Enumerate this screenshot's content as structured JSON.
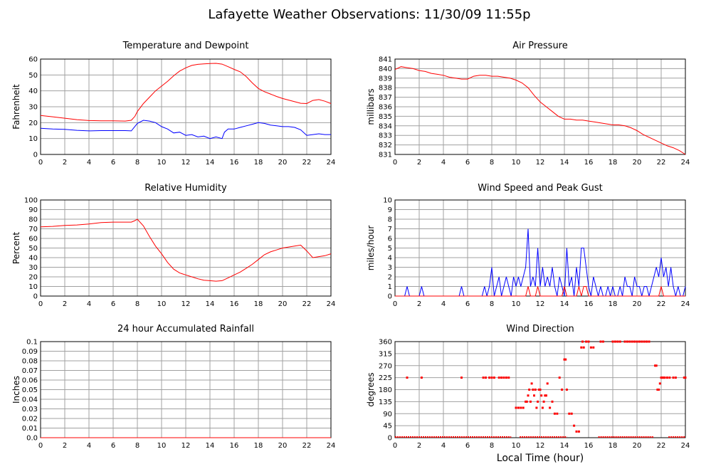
{
  "page_title": "Lafayette Weather Observations: 11/30/09 11:55p",
  "xlabel_global": "Local Time (hour)",
  "colors": {
    "temperature": "#ff0000",
    "dewpoint": "#0000ff",
    "grid": "#a0a0a0",
    "axes": "#000000"
  },
  "chart_data": [
    {
      "id": "temperature-dewpoint",
      "type": "line",
      "title": "Temperature and Dewpoint",
      "xlabel": "",
      "ylabel": "Fahrenheit",
      "xlim": [
        0,
        24
      ],
      "ylim": [
        0,
        60
      ],
      "xticks": [
        0,
        2,
        4,
        6,
        8,
        10,
        12,
        14,
        16,
        18,
        20,
        22,
        24
      ],
      "yticks": [
        0,
        10,
        20,
        30,
        40,
        50,
        60
      ],
      "grid": true,
      "series": [
        {
          "color": "#ff0000",
          "x": [
            0,
            1,
            2,
            3,
            4,
            5,
            6,
            7,
            7.5,
            7.8,
            8,
            8.5,
            9,
            9.5,
            10,
            10.5,
            11,
            11.5,
            12,
            12.5,
            13,
            13.5,
            14,
            14.5,
            15,
            15.5,
            16,
            16.5,
            17,
            17.5,
            18,
            18.5,
            19,
            19.5,
            20,
            20.5,
            21,
            21.5,
            22,
            22.5,
            23,
            23.5,
            24
          ],
          "y": [
            24.5,
            23.7,
            22.8,
            21.9,
            21.3,
            21.2,
            21.2,
            21.0,
            21.5,
            24,
            27,
            32,
            36,
            40,
            43,
            46,
            49.5,
            52.5,
            54.5,
            56,
            56.7,
            57,
            57.2,
            57.3,
            56.8,
            55.2,
            53.5,
            52,
            49,
            45,
            41.5,
            39.5,
            38,
            36.5,
            35.2,
            34.2,
            33.2,
            32.2,
            32,
            34,
            34.5,
            33.5,
            32
          ]
        },
        {
          "color": "#0000ff",
          "x": [
            0,
            1,
            2,
            3,
            4,
            5,
            6,
            7,
            7.5,
            8,
            8.5,
            9,
            9.5,
            10,
            10.5,
            11,
            11.5,
            12,
            12.5,
            13,
            13.5,
            14,
            14.5,
            15,
            15.2,
            15.5,
            16,
            16.5,
            17,
            17.5,
            18,
            18.5,
            19,
            19.5,
            20,
            20.5,
            21,
            21.5,
            22,
            22.5,
            23,
            23.5,
            24
          ],
          "y": [
            16.5,
            16.0,
            15.8,
            15.2,
            14.8,
            15.0,
            15.0,
            15.0,
            14.8,
            19.5,
            21.5,
            21.0,
            20.0,
            17.5,
            16.0,
            13.5,
            14.0,
            12.0,
            12.5,
            11.0,
            11.5,
            10.0,
            11.0,
            10.0,
            14.0,
            16.0,
            16.0,
            17.0,
            18.0,
            19.0,
            20.0,
            19.5,
            18.5,
            18.0,
            17.5,
            17.5,
            17.0,
            15.5,
            12.0,
            12.5,
            13.0,
            12.5,
            12.5
          ]
        }
      ]
    },
    {
      "id": "air-pressure",
      "type": "line",
      "title": "Air Pressure",
      "xlabel": "",
      "ylabel": "millibars",
      "xlim": [
        0,
        24
      ],
      "ylim": [
        831,
        841
      ],
      "xticks": [
        0,
        2,
        4,
        6,
        8,
        10,
        12,
        14,
        16,
        18,
        20,
        22,
        24
      ],
      "yticks": [
        831,
        832,
        833,
        834,
        835,
        836,
        837,
        838,
        839,
        840,
        841
      ],
      "grid": true,
      "series": [
        {
          "color": "#ff0000",
          "x": [
            0,
            0.5,
            1,
            1.5,
            2,
            2.5,
            3,
            3.5,
            4,
            4.5,
            5,
            5.5,
            6,
            6.5,
            7,
            7.5,
            8,
            8.5,
            9,
            9.5,
            10,
            10.5,
            11,
            11.5,
            12,
            12.5,
            13,
            13.5,
            14,
            14.5,
            15,
            15.5,
            16,
            16.5,
            17,
            17.5,
            18,
            18.5,
            19,
            19.5,
            20,
            20.5,
            21,
            21.5,
            22,
            22.5,
            23,
            23.5,
            24
          ],
          "y": [
            839.9,
            840.2,
            840.1,
            840.0,
            839.8,
            839.7,
            839.5,
            839.4,
            839.3,
            839.1,
            839.0,
            838.9,
            838.9,
            839.2,
            839.3,
            839.3,
            839.2,
            839.2,
            839.1,
            839.0,
            838.8,
            838.5,
            838.0,
            837.2,
            836.5,
            836.0,
            835.5,
            835.0,
            834.7,
            834.7,
            834.6,
            834.6,
            834.5,
            834.4,
            834.3,
            834.2,
            834.1,
            834.1,
            834.0,
            833.8,
            833.5,
            833.1,
            832.8,
            832.5,
            832.2,
            831.9,
            831.7,
            831.4,
            831.0
          ]
        }
      ]
    },
    {
      "id": "relative-humidity",
      "type": "line",
      "title": "Relative Humidity",
      "xlabel": "",
      "ylabel": "Percent",
      "xlim": [
        0,
        24
      ],
      "ylim": [
        0,
        100
      ],
      "xticks": [
        0,
        2,
        4,
        6,
        8,
        10,
        12,
        14,
        16,
        18,
        20,
        22,
        24
      ],
      "yticks": [
        0,
        10,
        20,
        30,
        40,
        50,
        60,
        70,
        80,
        90,
        100
      ],
      "grid": true,
      "series": [
        {
          "color": "#ff0000",
          "x": [
            0,
            1,
            2,
            3,
            4,
            5,
            6,
            7,
            7.5,
            7.8,
            8,
            8.5,
            9,
            9.5,
            10,
            10.5,
            11,
            11.5,
            12,
            12.5,
            13,
            13.5,
            14,
            14.5,
            15,
            15.5,
            16,
            16.5,
            17,
            17.5,
            18,
            18.5,
            19,
            19.5,
            20,
            20.5,
            21,
            21.5,
            22,
            22.5,
            23,
            23.5,
            24
          ],
          "y": [
            72,
            72.5,
            73.5,
            74,
            75,
            76.5,
            77,
            77,
            77,
            78.5,
            80,
            73,
            62,
            52,
            44,
            35,
            28,
            24,
            22,
            20,
            18,
            16.5,
            16,
            15.5,
            16,
            19,
            22,
            25,
            29,
            33,
            38,
            43,
            46,
            48,
            50,
            51,
            52,
            53,
            47,
            40,
            41,
            42,
            44
          ]
        }
      ]
    },
    {
      "id": "wind-speed-gust",
      "type": "line",
      "title": "Wind Speed and Peak Gust",
      "xlabel": "",
      "ylabel": "miles/hour",
      "xlim": [
        0,
        24
      ],
      "ylim": [
        0,
        10
      ],
      "xticks": [
        0,
        2,
        4,
        6,
        8,
        10,
        12,
        14,
        16,
        18,
        20,
        22,
        24
      ],
      "yticks": [
        0,
        1,
        2,
        3,
        4,
        5,
        6,
        7,
        8,
        9,
        10
      ],
      "grid": true,
      "series": [
        {
          "color": "#0000ff",
          "x": [
            0,
            0.8,
            1.0,
            1.2,
            2.0,
            2.2,
            2.4,
            5.3,
            5.5,
            5.7,
            7.2,
            7.4,
            7.6,
            7.8,
            8.0,
            8.2,
            8.4,
            8.6,
            8.8,
            9.0,
            9.2,
            9.4,
            9.6,
            9.8,
            10.0,
            10.2,
            10.4,
            10.6,
            10.8,
            11.0,
            11.2,
            11.4,
            11.6,
            11.8,
            12.0,
            12.2,
            12.4,
            12.6,
            12.8,
            13.0,
            13.2,
            13.4,
            13.6,
            13.8,
            14.0,
            14.2,
            14.4,
            14.6,
            14.8,
            15.0,
            15.2,
            15.4,
            15.6,
            15.8,
            16.0,
            16.2,
            16.4,
            16.6,
            16.8,
            17.0,
            17.2,
            17.4,
            17.6,
            17.8,
            18.0,
            18.2,
            18.4,
            18.6,
            18.8,
            19.0,
            19.2,
            19.4,
            19.6,
            19.8,
            20.0,
            20.2,
            20.4,
            20.6,
            20.8,
            21.0,
            21.2,
            21.4,
            21.6,
            21.8,
            22.0,
            22.2,
            22.4,
            22.6,
            22.8,
            23.0,
            23.2,
            23.4,
            23.6,
            23.8,
            24.0
          ],
          "y": [
            0,
            0,
            1,
            0,
            0,
            1,
            0,
            0,
            1,
            0,
            0,
            1,
            0,
            1,
            3,
            0,
            1,
            2,
            0,
            1,
            2,
            1,
            0,
            2,
            1,
            2,
            1,
            2,
            3,
            7,
            1,
            2,
            1,
            5,
            1,
            3,
            1,
            2,
            1,
            3,
            1,
            0,
            2,
            1,
            0,
            5,
            1,
            2,
            0,
            3,
            1,
            5,
            5,
            3,
            1,
            0,
            2,
            1,
            0,
            1,
            0,
            0,
            1,
            0,
            1,
            0,
            0,
            1,
            0,
            2,
            1,
            1,
            0,
            2,
            1,
            1,
            0,
            1,
            1,
            0,
            1,
            2,
            3,
            2,
            4,
            2,
            3,
            1,
            3,
            1,
            0,
            1,
            0,
            0,
            1
          ]
        },
        {
          "color": "#ff0000",
          "x": [
            0,
            10.8,
            11.0,
            11.2,
            11.6,
            11.8,
            12.0,
            13.8,
            14.0,
            14.2,
            15.0,
            15.2,
            15.4,
            15.6,
            15.8,
            16.0,
            21.8,
            22.0,
            22.2,
            24.0
          ],
          "y": [
            0,
            0,
            1,
            0,
            0,
            1,
            0,
            0,
            1,
            0,
            0,
            1,
            0,
            1,
            1,
            0,
            0,
            1,
            0,
            0
          ]
        }
      ]
    },
    {
      "id": "rainfall",
      "type": "line",
      "title": "24 hour Accumulated Rainfall",
      "xlabel": "",
      "ylabel": "Inches",
      "xlim": [
        0,
        24
      ],
      "ylim": [
        0,
        0.1
      ],
      "xticks": [
        0,
        2,
        4,
        6,
        8,
        10,
        12,
        14,
        16,
        18,
        20,
        22,
        24
      ],
      "yticks": [
        0.0,
        0.01,
        0.02,
        0.03,
        0.04,
        0.05,
        0.06,
        0.07,
        0.08,
        0.09,
        0.1
      ],
      "ytick_labels": [
        "0.0",
        "0.01",
        "0.02",
        "0.03",
        "0.04",
        "0.05",
        "0.06",
        "0.07",
        "0.08",
        "0.09",
        "0.1"
      ],
      "grid": true,
      "series": [
        {
          "color": "#ff0000",
          "x": [
            0,
            24
          ],
          "y": [
            0,
            0
          ]
        }
      ]
    },
    {
      "id": "wind-direction",
      "type": "scatter",
      "title": "Wind Direction",
      "xlabel": "Local Time (hour)",
      "ylabel": "degrees",
      "xlim": [
        0,
        24
      ],
      "ylim": [
        0,
        360
      ],
      "xticks": [
        0,
        2,
        4,
        6,
        8,
        10,
        12,
        14,
        16,
        18,
        20,
        22,
        24
      ],
      "yticks": [
        0,
        45,
        90,
        135,
        180,
        225,
        270,
        315,
        360
      ],
      "grid": true,
      "zero_line_ranges": [
        [
          0,
          9.6
        ],
        [
          10.3,
          14.2
        ],
        [
          16.8,
          21.4
        ],
        [
          22.6,
          24
        ]
      ],
      "series": [
        {
          "color": "#ff0000",
          "x": [
            1.0,
            2.2,
            5.5,
            7.3,
            7.5,
            7.8,
            8.0,
            8.2,
            8.6,
            8.8,
            9.0,
            9.2,
            9.4,
            10.0,
            10.2,
            10.4,
            10.6,
            10.8,
            10.9,
            11.0,
            11.1,
            11.2,
            11.3,
            11.4,
            11.5,
            11.6,
            11.7,
            11.8,
            11.9,
            12.0,
            12.1,
            12.2,
            12.3,
            12.4,
            12.5,
            12.6,
            12.8,
            13.0,
            13.2,
            13.4,
            13.6,
            13.8,
            14.0,
            14.1,
            14.2,
            14.4,
            14.6,
            14.8,
            15.0,
            15.2,
            15.4,
            15.5,
            15.6,
            15.8,
            16.0,
            16.2,
            16.4,
            17.0,
            17.2,
            18.0,
            18.2,
            18.4,
            18.6,
            19.0,
            19.2,
            19.4,
            19.6,
            19.8,
            20.0,
            20.2,
            20.4,
            20.6,
            20.8,
            21.0,
            21.5,
            21.6,
            21.7,
            21.8,
            21.9,
            22.0,
            22.1,
            22.2,
            22.3,
            22.5,
            22.7,
            23.0,
            23.2,
            24.0,
            23.9
          ],
          "y": [
            225,
            225,
            225,
            225,
            225,
            225,
            225,
            225,
            225,
            225,
            225,
            225,
            225,
            112,
            112,
            112,
            112,
            135,
            135,
            158,
            180,
            135,
            203,
            180,
            158,
            180,
            112,
            135,
            180,
            180,
            158,
            112,
            135,
            158,
            158,
            203,
            112,
            135,
            90,
            90,
            225,
            180,
            293,
            293,
            180,
            90,
            90,
            45,
            23,
            23,
            338,
            360,
            338,
            360,
            360,
            338,
            338,
            360,
            360,
            360,
            360,
            360,
            360,
            360,
            360,
            360,
            360,
            360,
            360,
            360,
            360,
            360,
            360,
            360,
            270,
            270,
            180,
            180,
            203,
            225,
            225,
            225,
            225,
            225,
            225,
            225,
            225,
            225,
            225
          ]
        }
      ]
    }
  ]
}
